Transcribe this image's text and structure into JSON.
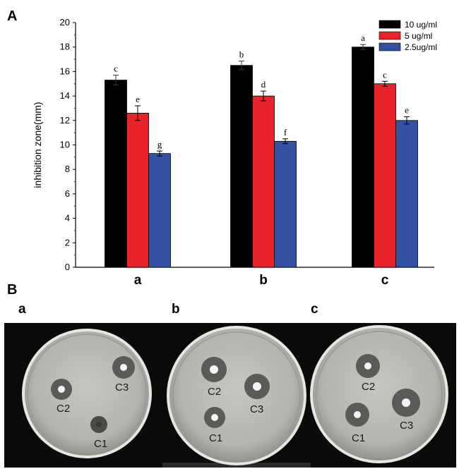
{
  "figure": {
    "panel_a_label": "A",
    "panel_b_label": "B",
    "photo_labels": [
      "a",
      "b",
      "c"
    ]
  },
  "chart_data": {
    "type": "bar",
    "categories": [
      "a",
      "b",
      "c"
    ],
    "series": [
      {
        "name": "10 ug/ml",
        "color": "#000000",
        "values": [
          15.3,
          16.5,
          18.0
        ],
        "errors": [
          0.4,
          0.35,
          0.2
        ],
        "letters": [
          "c",
          "b",
          "a"
        ]
      },
      {
        "name": "5  ug/ml",
        "color": "#e8242a",
        "values": [
          12.6,
          14.0,
          15.0
        ],
        "errors": [
          0.6,
          0.4,
          0.2
        ],
        "letters": [
          "e",
          "d",
          "c"
        ]
      },
      {
        "name": "2.5ug/ml",
        "color": "#3450a3",
        "values": [
          9.3,
          10.3,
          12.0
        ],
        "errors": [
          0.2,
          0.2,
          0.3
        ],
        "letters": [
          "g",
          "f",
          "e"
        ]
      }
    ],
    "ylabel": "inhibition zone(mm)",
    "xlabel": "",
    "ylim": [
      0,
      20
    ],
    "yticks": [
      0,
      2,
      4,
      6,
      8,
      10,
      12,
      14,
      16,
      18,
      20
    ],
    "legend_position": "top-right"
  },
  "dishes": [
    {
      "name": "a",
      "wells": [
        {
          "label": "C2"
        },
        {
          "label": "C3"
        },
        {
          "label": "C1"
        }
      ]
    },
    {
      "name": "b",
      "wells": [
        {
          "label": "C2"
        },
        {
          "label": "C3"
        },
        {
          "label": "C1"
        }
      ]
    },
    {
      "name": "c",
      "wells": [
        {
          "label": "C2"
        },
        {
          "label": "C3"
        },
        {
          "label": "C1"
        }
      ]
    }
  ]
}
